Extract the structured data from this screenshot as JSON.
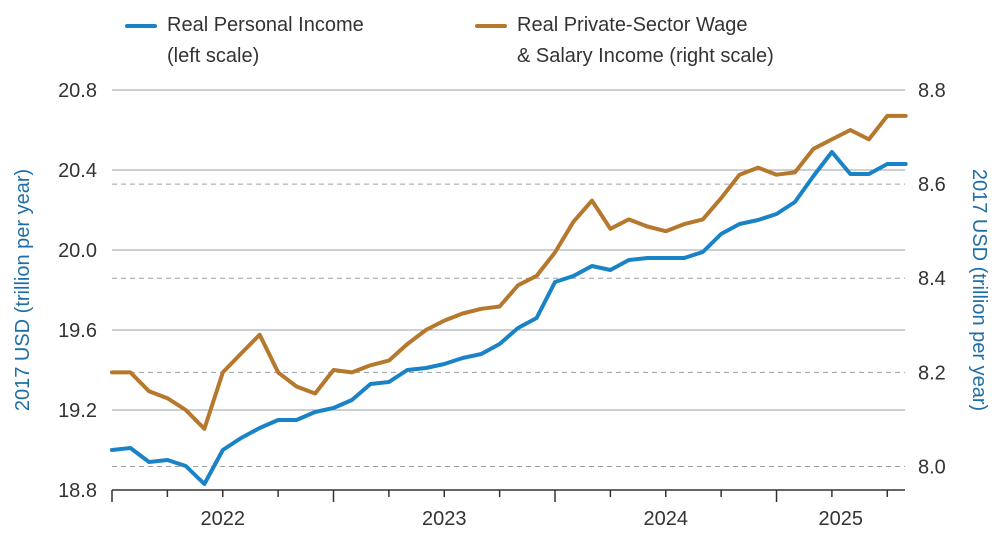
{
  "chart_data": {
    "type": "line",
    "legend": [
      {
        "line1": "Real Personal Income",
        "line2": "(left scale)",
        "color": "#1a83c6",
        "axis": "left"
      },
      {
        "line1": "Real Private-Sector Wage",
        "line2": "& Salary Income (right scale)",
        "color": "#b5782d",
        "axis": "right"
      }
    ],
    "left_axis": {
      "title": "2017 USD (trillion per year)",
      "min": 18.8,
      "max": 20.8,
      "ticks": [
        "18.8",
        "19.2",
        "19.6",
        "20.0",
        "20.4",
        "20.8"
      ]
    },
    "right_axis": {
      "title": "2017 USD (trillion per year)",
      "min": 7.95,
      "max": 8.8,
      "ticks": [
        "8.0",
        "8.2",
        "8.4",
        "8.6",
        "8.8"
      ]
    },
    "x_axis": {
      "labels": [
        "2022",
        "2023",
        "2024",
        "2025"
      ],
      "start": 2022.0,
      "end": 2025.58
    },
    "series": [
      {
        "name": "Real Personal Income",
        "axis": "left",
        "color": "#1a83c6",
        "x": [
          2022.0,
          2022.083,
          2022.167,
          2022.25,
          2022.333,
          2022.417,
          2022.5,
          2022.583,
          2022.667,
          2022.75,
          2022.833,
          2022.917,
          2023.0,
          2023.083,
          2023.167,
          2023.25,
          2023.333,
          2023.417,
          2023.5,
          2023.583,
          2023.667,
          2023.75,
          2023.833,
          2023.917,
          2024.0,
          2024.083,
          2024.167,
          2024.25,
          2024.333,
          2024.417,
          2024.5,
          2024.583,
          2024.667,
          2024.75,
          2024.833,
          2024.917,
          2025.0,
          2025.083,
          2025.167,
          2025.25,
          2025.333,
          2025.417,
          2025.5,
          2025.583
        ],
        "values": [
          19.0,
          19.01,
          18.94,
          18.95,
          18.92,
          18.83,
          19.0,
          19.06,
          19.11,
          19.15,
          19.15,
          19.19,
          19.21,
          19.25,
          19.33,
          19.34,
          19.4,
          19.41,
          19.43,
          19.46,
          19.48,
          19.53,
          19.61,
          19.66,
          19.84,
          19.87,
          19.92,
          19.9,
          19.95,
          19.96,
          19.96,
          19.96,
          19.99,
          20.08,
          20.13,
          20.15,
          20.18,
          20.24,
          20.37,
          20.49,
          20.38,
          20.38,
          20.43,
          20.43
        ]
      },
      {
        "name": "Real Private-Sector Wage & Salary Income",
        "axis": "right",
        "color": "#b5782d",
        "x": [
          2022.0,
          2022.083,
          2022.167,
          2022.25,
          2022.333,
          2022.417,
          2022.5,
          2022.583,
          2022.667,
          2022.75,
          2022.833,
          2022.917,
          2023.0,
          2023.083,
          2023.167,
          2023.25,
          2023.333,
          2023.417,
          2023.5,
          2023.583,
          2023.667,
          2023.75,
          2023.833,
          2023.917,
          2024.0,
          2024.083,
          2024.167,
          2024.25,
          2024.333,
          2024.417,
          2024.5,
          2024.583,
          2024.667,
          2024.75,
          2024.833,
          2024.917,
          2025.0,
          2025.083,
          2025.167,
          2025.25,
          2025.333,
          2025.417,
          2025.5,
          2025.583
        ],
        "values": [
          8.2,
          8.2,
          8.16,
          8.145,
          8.12,
          8.08,
          8.2,
          8.24,
          8.28,
          8.2,
          8.17,
          8.155,
          8.205,
          8.2,
          8.215,
          8.225,
          8.26,
          8.29,
          8.31,
          8.325,
          8.335,
          8.34,
          8.385,
          8.405,
          8.455,
          8.52,
          8.565,
          8.505,
          8.525,
          8.51,
          8.5,
          8.515,
          8.525,
          8.57,
          8.62,
          8.635,
          8.62,
          8.625,
          8.675,
          8.695,
          8.715,
          8.695,
          8.745,
          8.745
        ]
      }
    ]
  }
}
